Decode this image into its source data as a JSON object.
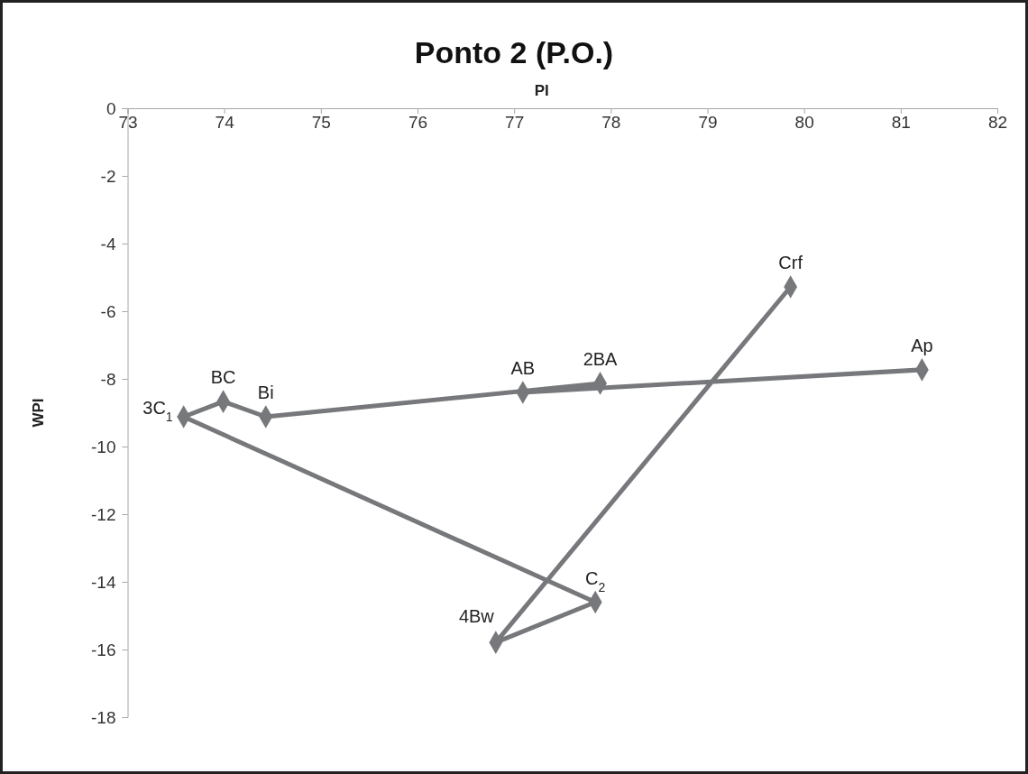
{
  "chart_data": {
    "type": "line",
    "title": "Ponto 2 (P.O.)",
    "xlabel": "PI",
    "ylabel": "WPI",
    "x": [
      81.22,
      77.09,
      77.89,
      74.43,
      73.99,
      73.58,
      77.84,
      76.81,
      79.86
    ],
    "values": [
      -7.73,
      -8.4,
      -8.13,
      -9.12,
      -8.67,
      -9.12,
      -14.6,
      -15.79,
      -5.28
    ],
    "color": "#77787b",
    "marker": "diamond",
    "line_style": "solid",
    "grid": false,
    "xlim": [
      73,
      82
    ],
    "xticks": [
      73,
      74,
      75,
      76,
      77,
      78,
      79,
      80,
      81,
      82
    ],
    "ylim": [
      -18,
      0
    ],
    "yticks": [
      0,
      -2,
      -4,
      -6,
      -8,
      -10,
      -12,
      -14,
      -16,
      -18
    ],
    "annotations": [
      {
        "text": "Ap",
        "x": 81.22,
        "y": -7.73
      },
      {
        "text": "AB",
        "x": 77.09,
        "y": -8.4
      },
      {
        "text": "2BA",
        "x": 77.89,
        "y": -8.13
      },
      {
        "text": "Bi",
        "x": 74.43,
        "y": -9.12
      },
      {
        "text": "BC",
        "x": 73.99,
        "y": -8.67
      },
      {
        "text": "3C$_{1}$",
        "x": 73.58,
        "y": -9.12
      },
      {
        "text": "C$_{2}$",
        "x": 77.84,
        "y": -14.6
      },
      {
        "text": "4Bw",
        "x": 76.81,
        "y": -15.79
      },
      {
        "text": "Crf",
        "x": 79.86,
        "y": -5.28
      }
    ]
  }
}
